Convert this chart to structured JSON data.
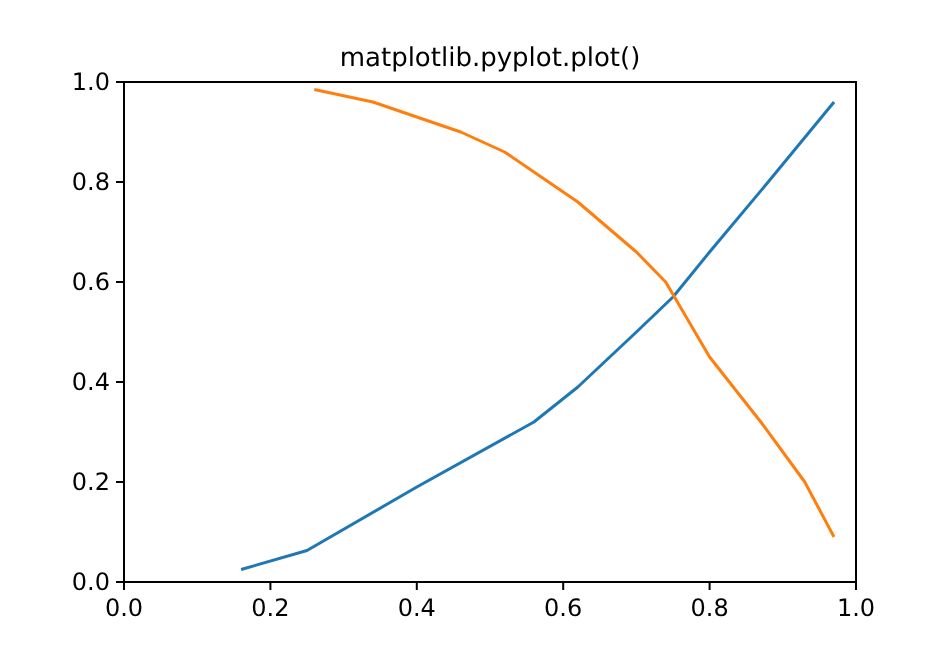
{
  "chart_data": {
    "type": "line",
    "title": "matplotlib.pyplot.plot()",
    "xlim": [
      0,
      1
    ],
    "ylim": [
      0,
      1
    ],
    "xticks": [
      {
        "value": 0,
        "label": "0.0"
      },
      {
        "value": 0.2,
        "label": "0.2"
      },
      {
        "value": 0.4,
        "label": "0.4"
      },
      {
        "value": 0.6,
        "label": "0.6"
      },
      {
        "value": 0.8,
        "label": "0.8"
      },
      {
        "value": 1,
        "label": "1.0"
      }
    ],
    "yticks": [
      {
        "value": 0,
        "label": "0.0"
      },
      {
        "value": 0.2,
        "label": "0.2"
      },
      {
        "value": 0.4,
        "label": "0.4"
      },
      {
        "value": 0.6,
        "label": "0.6"
      },
      {
        "value": 0.8,
        "label": "0.8"
      },
      {
        "value": 1,
        "label": "1.0"
      }
    ],
    "series": [
      {
        "color": "#1f77b4",
        "x": [
          0.16,
          0.25,
          0.4,
          0.56,
          0.62,
          0.7,
          0.75,
          0.8,
          0.88,
          0.97
        ],
        "values": [
          0.025,
          0.063,
          0.19,
          0.32,
          0.39,
          0.5,
          0.57,
          0.66,
          0.8,
          0.96
        ]
      },
      {
        "color": "#ff7f0e",
        "x": [
          0.26,
          0.34,
          0.46,
          0.52,
          0.57,
          0.62,
          0.7,
          0.74,
          0.8,
          0.87,
          0.93,
          0.97
        ],
        "values": [
          0.985,
          0.96,
          0.9,
          0.86,
          0.81,
          0.76,
          0.66,
          0.6,
          0.45,
          0.32,
          0.2,
          0.09
        ]
      }
    ]
  }
}
